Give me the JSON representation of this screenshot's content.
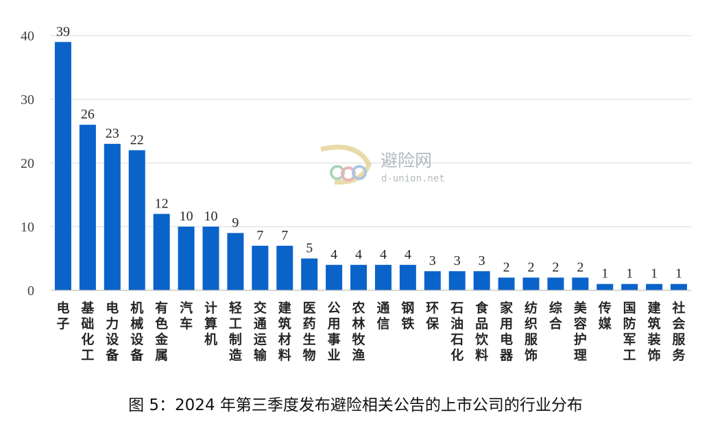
{
  "caption": "图 5：2024 年第三季度发布避险相关公告的上市公司的行业分布",
  "watermark": {
    "cn": "避险网",
    "en": "d-union.net"
  },
  "colors": {
    "bar": "#0a63c9",
    "grid": "#d9d9d9",
    "axis": "#bfbfbf"
  },
  "chart_data": {
    "type": "bar",
    "title": "",
    "xlabel": "",
    "ylabel": "",
    "ylim": [
      0,
      40
    ],
    "yticks": [
      0,
      10,
      20,
      30,
      40
    ],
    "grid": true,
    "categories": [
      "电子",
      "基础化工",
      "电力设备",
      "机械设备",
      "有色金属",
      "汽车",
      "计算机",
      "轻工制造",
      "交通运输",
      "建筑材料",
      "医药生物",
      "公用事业",
      "农林牧渔",
      "通信",
      "钢铁",
      "环保",
      "石油石化",
      "食品饮料",
      "家用电器",
      "纺织服饰",
      "综合",
      "美容护理",
      "传媒",
      "国防军工",
      "建筑装饰",
      "社会服务"
    ],
    "values": [
      39,
      26,
      23,
      22,
      12,
      10,
      10,
      9,
      7,
      7,
      5,
      4,
      4,
      4,
      4,
      3,
      3,
      3,
      2,
      2,
      2,
      2,
      1,
      1,
      1,
      1
    ]
  }
}
